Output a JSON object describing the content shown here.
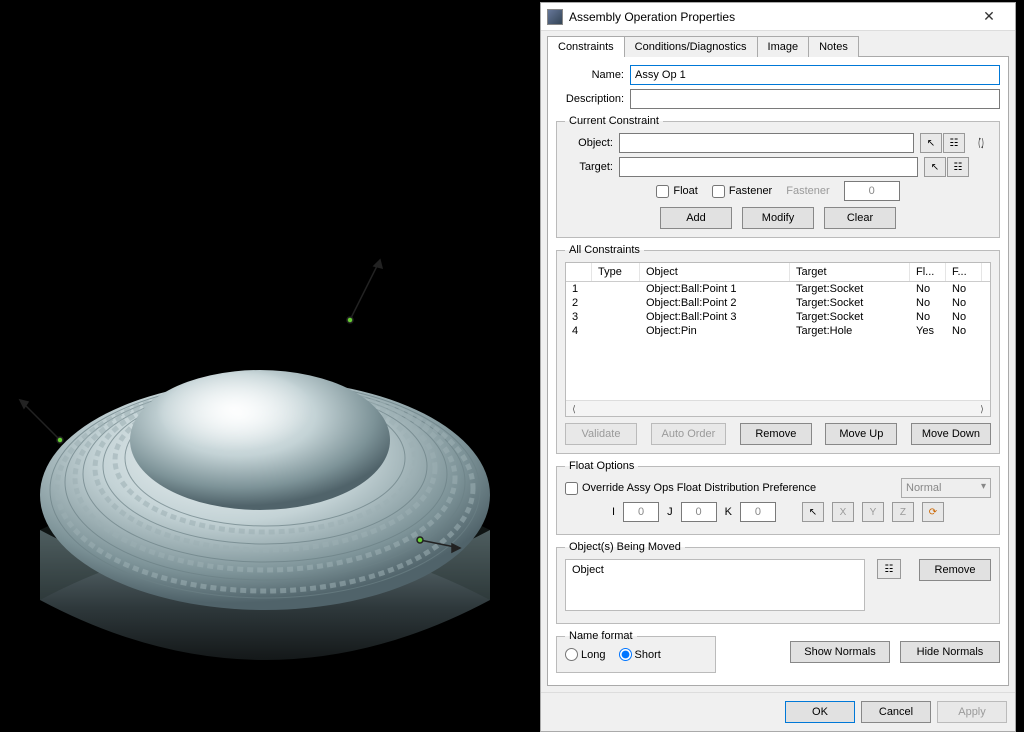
{
  "dialog": {
    "title": "Assembly Operation Properties",
    "tabs": [
      "Constraints",
      "Conditions/Diagnostics",
      "Image",
      "Notes"
    ],
    "active_tab": 0,
    "name_label": "Name:",
    "name_value": "Assy Op 1",
    "desc_label": "Description:",
    "desc_value": ""
  },
  "current_constraint": {
    "legend": "Current Constraint",
    "object_label": "Object:",
    "object_value": "",
    "target_label": "Target:",
    "target_value": "",
    "float_label": "Float",
    "fastener_label": "Fastener",
    "fastener_placeholder": "Fastener",
    "fastener_count": "0",
    "add": "Add",
    "modify": "Modify",
    "clear": "Clear"
  },
  "all_constraints": {
    "legend": "All Constraints",
    "columns": {
      "type": "Type",
      "object": "Object",
      "target": "Target",
      "float": "Fl...",
      "fastener": "F..."
    },
    "rows": [
      {
        "idx": "1",
        "type": "",
        "object": "Object:Ball:Point 1",
        "target": "Target:Socket",
        "float": "No",
        "fastener": "No"
      },
      {
        "idx": "2",
        "type": "",
        "object": "Object:Ball:Point 2",
        "target": "Target:Socket",
        "float": "No",
        "fastener": "No"
      },
      {
        "idx": "3",
        "type": "",
        "object": "Object:Ball:Point 3",
        "target": "Target:Socket",
        "float": "No",
        "fastener": "No"
      },
      {
        "idx": "4",
        "type": "",
        "object": "Object:Pin",
        "target": "Target:Hole",
        "float": "Yes",
        "fastener": "No"
      }
    ],
    "validate": "Validate",
    "auto_order": "Auto Order",
    "remove": "Remove",
    "move_up": "Move Up",
    "move_down": "Move Down"
  },
  "float_options": {
    "legend": "Float Options",
    "override_label": "Override Assy Ops Float Distribution Preference",
    "dist_value": "Normal",
    "i_label": "I",
    "i_val": "0",
    "j_label": "J",
    "j_val": "0",
    "k_label": "K",
    "k_val": "0",
    "axis_x": "X",
    "axis_y": "Y",
    "axis_z": "Z"
  },
  "being_moved": {
    "legend": "Object(s) Being Moved",
    "text": "Object",
    "remove": "Remove"
  },
  "name_format": {
    "legend": "Name format",
    "long": "Long",
    "short": "Short",
    "show_normals": "Show Normals",
    "hide_normals": "Hide Normals"
  },
  "footer": {
    "ok": "OK",
    "cancel": "Cancel",
    "apply": "Apply"
  },
  "viewport": {
    "bg": "#000000",
    "body_light": "#dfe8ea",
    "body_mid": "#9fb3b8",
    "body_dark": "#4a5a5e",
    "edge": "#1a1e1f"
  }
}
